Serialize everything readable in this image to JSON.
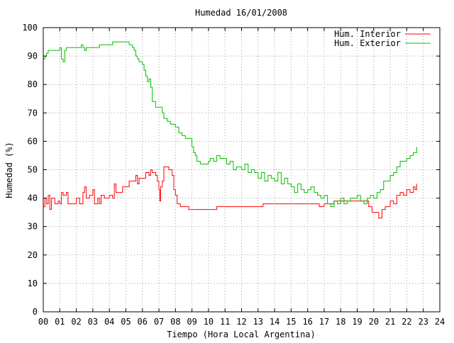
{
  "chart_data": {
    "type": "line",
    "title": "Humedad 16/01/2008",
    "xlabel": "Tiempo (Hora Local Argentina)",
    "ylabel": "Humedad (%)",
    "xlim": [
      0,
      24
    ],
    "ylim": [
      0,
      100
    ],
    "x_ticks": [
      "00",
      "01",
      "02",
      "03",
      "04",
      "05",
      "06",
      "07",
      "08",
      "09",
      "10",
      "11",
      "12",
      "13",
      "14",
      "15",
      "16",
      "17",
      "18",
      "19",
      "20",
      "21",
      "22",
      "23",
      "24"
    ],
    "y_ticks": [
      "0",
      "10",
      "20",
      "30",
      "40",
      "50",
      "60",
      "70",
      "80",
      "90",
      "100"
    ],
    "grid": "dotted",
    "legend_position": "top-right",
    "series": [
      {
        "name": "Hum. Interior",
        "color": "#ff0000",
        "points": [
          [
            0.0,
            37
          ],
          [
            0.1,
            40
          ],
          [
            0.2,
            38
          ],
          [
            0.3,
            41
          ],
          [
            0.4,
            36
          ],
          [
            0.5,
            40
          ],
          [
            0.7,
            38
          ],
          [
            0.9,
            39
          ],
          [
            1.0,
            38
          ],
          [
            1.1,
            42
          ],
          [
            1.2,
            41
          ],
          [
            1.4,
            42
          ],
          [
            1.5,
            38
          ],
          [
            1.8,
            38
          ],
          [
            2.0,
            40
          ],
          [
            2.2,
            38
          ],
          [
            2.4,
            42
          ],
          [
            2.5,
            44
          ],
          [
            2.6,
            40
          ],
          [
            2.8,
            41
          ],
          [
            3.0,
            43
          ],
          [
            3.1,
            38
          ],
          [
            3.3,
            40
          ],
          [
            3.4,
            38
          ],
          [
            3.5,
            41
          ],
          [
            3.7,
            40
          ],
          [
            4.0,
            41
          ],
          [
            4.2,
            40
          ],
          [
            4.3,
            45
          ],
          [
            4.4,
            42
          ],
          [
            4.6,
            42
          ],
          [
            4.8,
            44
          ],
          [
            5.0,
            44
          ],
          [
            5.2,
            46
          ],
          [
            5.4,
            46
          ],
          [
            5.6,
            48
          ],
          [
            5.7,
            45
          ],
          [
            5.8,
            47
          ],
          [
            6.0,
            47
          ],
          [
            6.2,
            49
          ],
          [
            6.4,
            48
          ],
          [
            6.5,
            50
          ],
          [
            6.6,
            49
          ],
          [
            6.8,
            48
          ],
          [
            6.9,
            46
          ],
          [
            7.0,
            43
          ],
          [
            7.05,
            39
          ],
          [
            7.1,
            44
          ],
          [
            7.2,
            46
          ],
          [
            7.3,
            51
          ],
          [
            7.6,
            50
          ],
          [
            7.8,
            48
          ],
          [
            7.9,
            43
          ],
          [
            8.0,
            41
          ],
          [
            8.1,
            38
          ],
          [
            8.3,
            37
          ],
          [
            8.8,
            36
          ],
          [
            9.2,
            36
          ],
          [
            10.0,
            36
          ],
          [
            10.5,
            37
          ],
          [
            12.0,
            37
          ],
          [
            13.0,
            37
          ],
          [
            13.3,
            38
          ],
          [
            14.0,
            38
          ],
          [
            16.0,
            38
          ],
          [
            16.4,
            38
          ],
          [
            16.7,
            37
          ],
          [
            17.0,
            38
          ],
          [
            17.4,
            38
          ],
          [
            17.6,
            39
          ],
          [
            18.0,
            39
          ],
          [
            19.5,
            39
          ],
          [
            19.7,
            37
          ],
          [
            19.9,
            35
          ],
          [
            20.2,
            35
          ],
          [
            20.3,
            33
          ],
          [
            20.5,
            36
          ],
          [
            20.7,
            37
          ],
          [
            21.0,
            39
          ],
          [
            21.2,
            38
          ],
          [
            21.4,
            41
          ],
          [
            21.6,
            42
          ],
          [
            21.8,
            41
          ],
          [
            22.0,
            43
          ],
          [
            22.2,
            42
          ],
          [
            22.4,
            44
          ],
          [
            22.5,
            43
          ],
          [
            22.6,
            45
          ]
        ]
      },
      {
        "name": "Hum. Exterior",
        "color": "#00c000",
        "points": [
          [
            0.0,
            89
          ],
          [
            0.1,
            90
          ],
          [
            0.2,
            91
          ],
          [
            0.3,
            92
          ],
          [
            0.5,
            92
          ],
          [
            0.9,
            92
          ],
          [
            1.0,
            93
          ],
          [
            1.1,
            89
          ],
          [
            1.2,
            88
          ],
          [
            1.3,
            92
          ],
          [
            1.4,
            93
          ],
          [
            1.8,
            93
          ],
          [
            2.0,
            93
          ],
          [
            2.3,
            94
          ],
          [
            2.4,
            93
          ],
          [
            2.5,
            92
          ],
          [
            2.6,
            93
          ],
          [
            3.0,
            93
          ],
          [
            3.3,
            93
          ],
          [
            3.4,
            94
          ],
          [
            4.0,
            94
          ],
          [
            4.2,
            95
          ],
          [
            5.0,
            95
          ],
          [
            5.2,
            94
          ],
          [
            5.4,
            93
          ],
          [
            5.5,
            92
          ],
          [
            5.6,
            90
          ],
          [
            5.7,
            89
          ],
          [
            5.8,
            88
          ],
          [
            6.0,
            87
          ],
          [
            6.1,
            85
          ],
          [
            6.2,
            83
          ],
          [
            6.3,
            81
          ],
          [
            6.4,
            82
          ],
          [
            6.5,
            79
          ],
          [
            6.6,
            74
          ],
          [
            6.8,
            72
          ],
          [
            7.0,
            72
          ],
          [
            7.2,
            70
          ],
          [
            7.3,
            68
          ],
          [
            7.5,
            67
          ],
          [
            7.7,
            66
          ],
          [
            8.0,
            65
          ],
          [
            8.2,
            63
          ],
          [
            8.4,
            62
          ],
          [
            8.6,
            61
          ],
          [
            8.9,
            61
          ],
          [
            9.0,
            58
          ],
          [
            9.1,
            56
          ],
          [
            9.2,
            55
          ],
          [
            9.3,
            53
          ],
          [
            9.5,
            52
          ],
          [
            9.7,
            52
          ],
          [
            10.0,
            53
          ],
          [
            10.1,
            54
          ],
          [
            10.3,
            53
          ],
          [
            10.5,
            55
          ],
          [
            10.7,
            54
          ],
          [
            11.0,
            54
          ],
          [
            11.1,
            52
          ],
          [
            11.3,
            53
          ],
          [
            11.5,
            50
          ],
          [
            11.7,
            51
          ],
          [
            12.0,
            50
          ],
          [
            12.2,
            52
          ],
          [
            12.4,
            49
          ],
          [
            12.6,
            50
          ],
          [
            12.8,
            49
          ],
          [
            13.0,
            47
          ],
          [
            13.2,
            49
          ],
          [
            13.4,
            46
          ],
          [
            13.6,
            48
          ],
          [
            13.8,
            47
          ],
          [
            14.0,
            46
          ],
          [
            14.2,
            49
          ],
          [
            14.4,
            45
          ],
          [
            14.6,
            47
          ],
          [
            14.8,
            45
          ],
          [
            15.0,
            44
          ],
          [
            15.2,
            42
          ],
          [
            15.4,
            45
          ],
          [
            15.6,
            43
          ],
          [
            15.8,
            42
          ],
          [
            16.0,
            43
          ],
          [
            16.2,
            44
          ],
          [
            16.4,
            42
          ],
          [
            16.6,
            41
          ],
          [
            16.8,
            40
          ],
          [
            17.0,
            41
          ],
          [
            17.2,
            38
          ],
          [
            17.4,
            37
          ],
          [
            17.6,
            39
          ],
          [
            17.8,
            38
          ],
          [
            18.0,
            40
          ],
          [
            18.2,
            38
          ],
          [
            18.4,
            39
          ],
          [
            18.6,
            40
          ],
          [
            18.8,
            40
          ],
          [
            19.0,
            41
          ],
          [
            19.2,
            39
          ],
          [
            19.4,
            38
          ],
          [
            19.6,
            40
          ],
          [
            19.8,
            41
          ],
          [
            20.0,
            40
          ],
          [
            20.2,
            42
          ],
          [
            20.4,
            43
          ],
          [
            20.6,
            46
          ],
          [
            20.8,
            46
          ],
          [
            21.0,
            48
          ],
          [
            21.2,
            49
          ],
          [
            21.4,
            51
          ],
          [
            21.6,
            53
          ],
          [
            21.8,
            53
          ],
          [
            22.0,
            54
          ],
          [
            22.2,
            55
          ],
          [
            22.4,
            56
          ],
          [
            22.6,
            58
          ]
        ]
      }
    ]
  }
}
